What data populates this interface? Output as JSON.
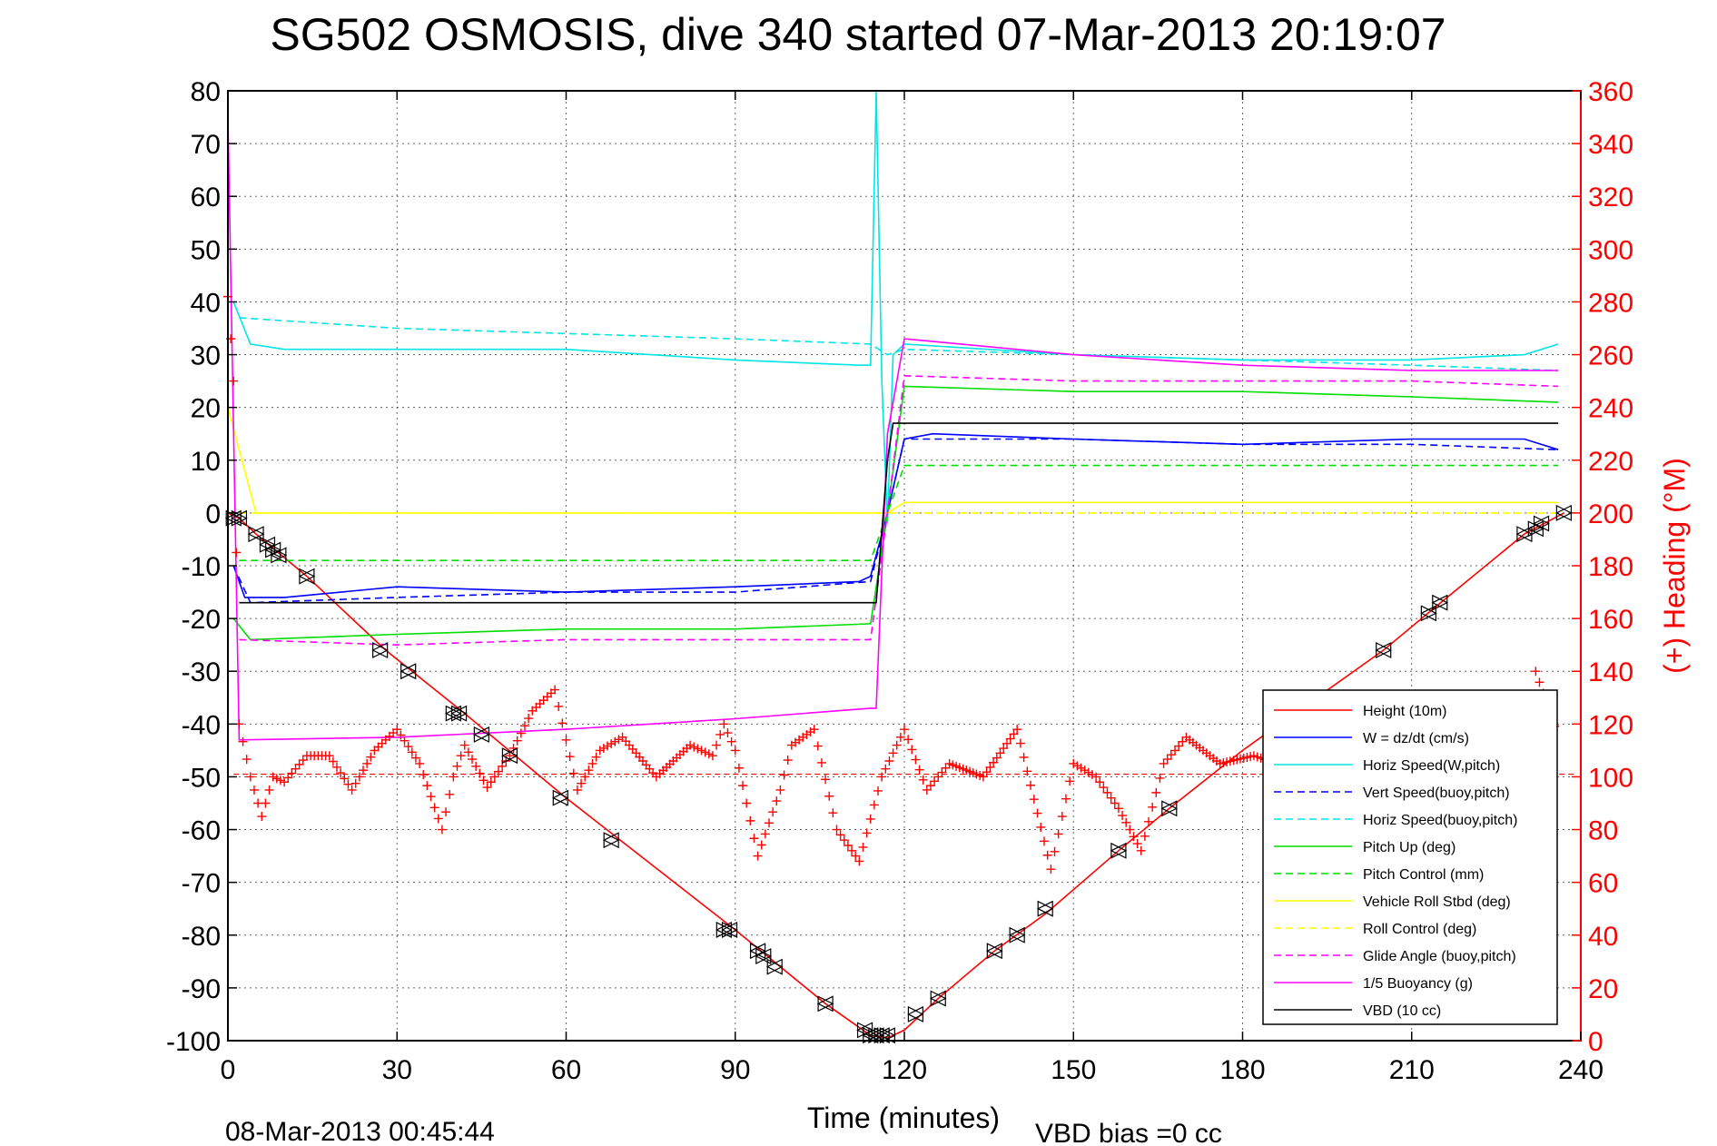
{
  "chart_data": {
    "type": "line",
    "title": "SG502 OSMOSIS, dive 340 started 07-Mar-2013 20:19:07",
    "xlabel": "Time (minutes)",
    "ylabel": "",
    "ylabel_right": "(+) Heading (°M)",
    "xlim": [
      0,
      240
    ],
    "ylim": [
      -100,
      80
    ],
    "ylim_right": [
      0,
      360
    ],
    "x_ticks": [
      "0",
      "30",
      "60",
      "90",
      "120",
      "150",
      "180",
      "210",
      "240"
    ],
    "y_ticks_left": [
      "80",
      "70",
      "60",
      "50",
      "40",
      "30",
      "20",
      "10",
      "0",
      "-10",
      "-20",
      "-30",
      "-40",
      "-50",
      "-60",
      "-70",
      "-80",
      "-90",
      "-100"
    ],
    "y_ticks_right": [
      "360",
      "340",
      "320",
      "300",
      "280",
      "260",
      "240",
      "220",
      "200",
      "180",
      "160",
      "140",
      "120",
      "100",
      "80",
      "60",
      "40",
      "20",
      "0"
    ],
    "grid": true,
    "legend_position": "bottom-right",
    "footer_left": "08-Mar-2013 00:45:44",
    "footer_right": "VBD bias =0 cc",
    "series": [
      {
        "name": "Height (10m)",
        "color": "#ff0000",
        "style": "solid",
        "x": [
          0,
          1,
          2,
          5,
          14,
          28,
          42,
          60,
          90,
          106,
          114,
          117,
          120,
          126,
          136,
          145,
          158,
          167,
          180,
          205,
          214,
          230,
          237
        ],
        "y": [
          0,
          -0.5,
          -1,
          -4,
          -12,
          -26,
          -38,
          -54,
          -79,
          -93,
          -99,
          -99.5,
          -98,
          -92,
          -83,
          -76,
          -64,
          -56,
          -45,
          -26,
          -18,
          -4,
          0
        ]
      },
      {
        "name": "W = dz/dt (cm/s)",
        "color": "#0000ff",
        "style": "solid",
        "x": [
          1,
          3,
          10,
          30,
          60,
          90,
          112,
          114,
          117,
          120,
          125,
          150,
          180,
          210,
          230,
          236
        ],
        "y": [
          -10,
          -16,
          -16,
          -14,
          -15,
          -14,
          -13,
          -12,
          0,
          14,
          15,
          14,
          13,
          14,
          14,
          12
        ]
      },
      {
        "name": "Horiz Speed(W,pitch)",
        "color": "#00e5e5",
        "style": "solid",
        "x": [
          1,
          4,
          10,
          30,
          60,
          90,
          112,
          114,
          115,
          116,
          117,
          118,
          120,
          150,
          180,
          210,
          230,
          236
        ],
        "y": [
          40,
          32,
          31,
          31,
          31,
          29,
          28,
          28,
          80,
          25,
          -2,
          30,
          32,
          30,
          29,
          29,
          30,
          32
        ]
      },
      {
        "name": "Vert Speed(buoy,pitch)",
        "color": "#0000ff",
        "style": "dashed",
        "x": [
          1,
          4,
          30,
          60,
          90,
          114,
          117,
          120,
          150,
          180,
          210,
          236
        ],
        "y": [
          -10,
          -17,
          -16,
          -15,
          -15,
          -13,
          0,
          14,
          14,
          13,
          13,
          12
        ]
      },
      {
        "name": "Horiz Speed(buoy,pitch)",
        "color": "#00e5e5",
        "style": "dashed",
        "x": [
          2,
          30,
          60,
          90,
          114,
          117,
          120,
          150,
          180,
          210,
          236
        ],
        "y": [
          37,
          35,
          34,
          33,
          32,
          30,
          31,
          30,
          29,
          28,
          27
        ]
      },
      {
        "name": "Pitch Up (deg)",
        "color": "#00dd00",
        "style": "solid",
        "x": [
          1,
          4,
          30,
          60,
          90,
          114,
          117,
          120,
          150,
          180,
          210,
          236
        ],
        "y": [
          -20,
          -24,
          -23,
          -22,
          -22,
          -21,
          0,
          24,
          23,
          23,
          22,
          21
        ]
      },
      {
        "name": "Pitch Control (mm)",
        "color": "#00dd00",
        "style": "dashed",
        "x": [
          2,
          114,
          117,
          120,
          236
        ],
        "y": [
          -9,
          -9,
          0,
          9,
          9
        ]
      },
      {
        "name": "Vehicle Roll Stbd (deg)",
        "color": "#ffff00",
        "style": "solid",
        "x": [
          0,
          5,
          30,
          60,
          90,
          114,
          117,
          120,
          150,
          180,
          210,
          236
        ],
        "y": [
          20,
          0,
          0,
          0,
          0,
          0,
          0,
          2,
          2,
          2,
          2,
          2
        ]
      },
      {
        "name": "Roll Control (deg)",
        "color": "#ffff00",
        "style": "dashed",
        "x": [
          0,
          114,
          117,
          236
        ],
        "y": [
          0,
          0,
          0,
          0
        ]
      },
      {
        "name": "Glide Angle (buoy,pitch)",
        "color": "#ff00ff",
        "style": "dashed",
        "x": [
          2,
          30,
          60,
          90,
          114,
          117,
          120,
          150,
          180,
          210,
          236
        ],
        "y": [
          -24,
          -25,
          -24,
          -24,
          -24,
          0,
          26,
          25,
          25,
          25,
          24
        ]
      },
      {
        "name": "1/5 Buoyancy (g)",
        "color": "#ff00ff",
        "style": "solid",
        "x": [
          0,
          2,
          30,
          60,
          90,
          114,
          115,
          117,
          120,
          150,
          180,
          210,
          236
        ],
        "y": [
          75,
          -43,
          -42.5,
          -41,
          -39,
          -37,
          -37,
          15,
          33,
          30,
          28,
          27,
          27
        ]
      },
      {
        "name": "VBD (10 cc)",
        "color": "#000000",
        "style": "solid",
        "x": [
          2,
          114,
          115,
          117,
          118,
          236
        ],
        "y": [
          -17,
          -17,
          -17,
          10,
          17,
          17
        ]
      }
    ],
    "heading_series": {
      "marker": "+",
      "color": "#ff0000",
      "axis": "right",
      "x": [
        0,
        1,
        2,
        4,
        6,
        8,
        10,
        14,
        18,
        22,
        26,
        30,
        34,
        38,
        40,
        42,
        46,
        50,
        54,
        58,
        62,
        66,
        70,
        76,
        82,
        86,
        88,
        90,
        94,
        98,
        100,
        104,
        108,
        112,
        116,
        120,
        124,
        128,
        134,
        140,
        146,
        150,
        154,
        158,
        162,
        166,
        170,
        176,
        182,
        190,
        200,
        208,
        214,
        220,
        226,
        230,
        232,
        236
      ],
      "y": [
        282,
        250,
        120,
        100,
        85,
        100,
        98,
        108,
        108,
        95,
        110,
        118,
        105,
        80,
        100,
        112,
        96,
        108,
        125,
        133,
        95,
        110,
        115,
        100,
        112,
        108,
        120,
        110,
        70,
        95,
        112,
        118,
        80,
        68,
        100,
        118,
        95,
        105,
        100,
        118,
        65,
        105,
        100,
        88,
        72,
        105,
        115,
        105,
        108,
        102,
        106,
        104,
        105,
        103,
        104,
        105,
        140,
        115
      ]
    },
    "heading_ref_line": {
      "value": 101,
      "color": "#ff0000",
      "style": "dashed"
    },
    "triangle_markers": {
      "color": "#000000",
      "x": [
        1,
        2,
        5,
        7,
        8,
        9,
        14,
        27,
        32,
        40,
        41,
        45,
        50,
        59,
        68,
        88,
        89,
        94,
        95,
        97,
        106,
        113,
        114,
        115,
        116,
        117,
        122,
        126,
        136,
        140,
        145,
        158,
        167,
        205,
        213,
        215,
        230,
        232,
        233,
        237
      ],
      "y": [
        -1,
        -1,
        -4,
        -6,
        -7,
        -8,
        -12,
        -26,
        -30,
        -38,
        -38,
        -42,
        -46,
        -54,
        -62,
        -79,
        -79,
        -83,
        -84,
        -86,
        -93,
        -98,
        -99,
        -99,
        -99,
        -99,
        -95,
        -92,
        -83,
        -80,
        -75,
        -64,
        -56,
        -26,
        -19,
        -17,
        -4,
        -3,
        -2,
        0
      ]
    }
  }
}
